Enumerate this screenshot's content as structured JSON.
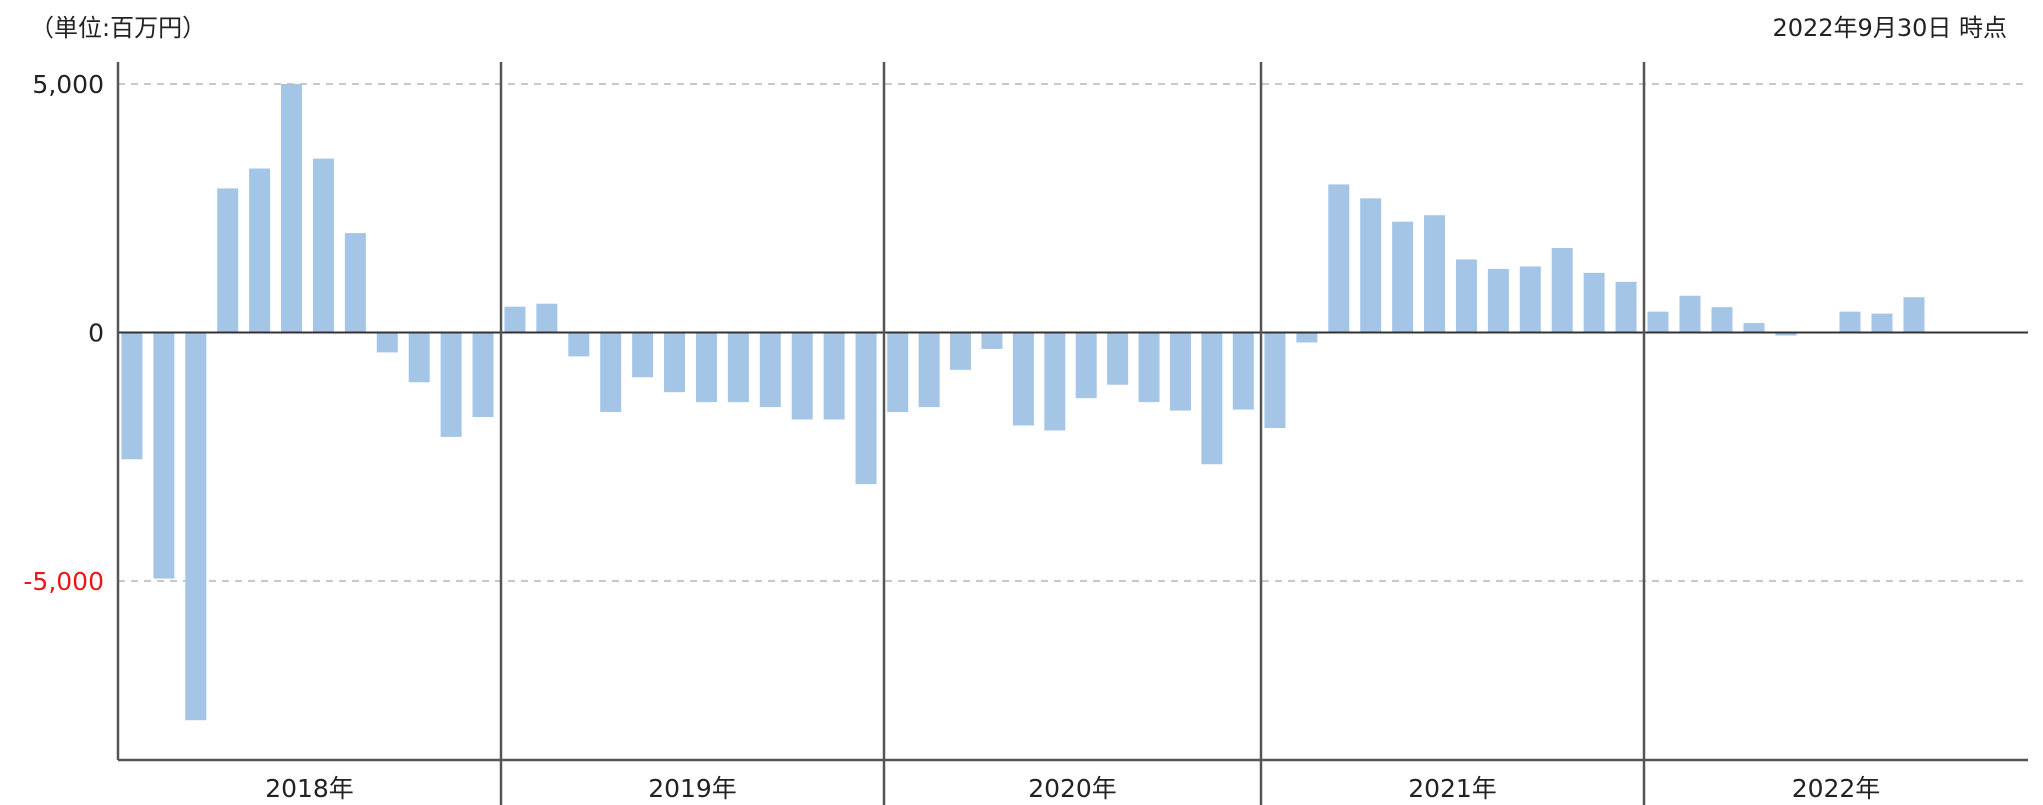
{
  "header": {
    "unit_label": "（単位:百万円）",
    "as_of_label": "2022年9月30日 時点"
  },
  "colors": {
    "bar": "#a4c5e6",
    "axis": "#555555",
    "grid": "#c8c8c8",
    "negative_tick": "#e8171a",
    "tick": "#222222"
  },
  "chart_data": {
    "type": "bar",
    "title": "",
    "xlabel": "",
    "ylabel": "",
    "ylim": [
      -8600,
      5000
    ],
    "yticks": [
      {
        "value": 5000,
        "label": "5,000",
        "negative": false
      },
      {
        "value": 0,
        "label": "0",
        "negative": false
      },
      {
        "value": -5000,
        "label": "-5,000",
        "negative": true
      }
    ],
    "grid": true,
    "groups": [
      {
        "label": "2018年",
        "values": [
          -2550,
          -4950,
          -7800,
          2900,
          3300,
          5000,
          3500,
          2000,
          -400,
          -1000,
          -2100,
          -1700
        ]
      },
      {
        "label": "2019年",
        "values": [
          520,
          580,
          -480,
          -1600,
          -900,
          -1200,
          -1400,
          -1400,
          -1500,
          -1750,
          -1750,
          -3050
        ]
      },
      {
        "label": "2020年",
        "values": [
          -1600,
          -1500,
          -750,
          -330,
          -1870,
          -1970,
          -1320,
          -1050,
          -1400,
          -1570,
          -2650,
          -1550
        ]
      },
      {
        "label": "2021年",
        "values": [
          -1920,
          -200,
          2980,
          2700,
          2230,
          2360,
          1470,
          1280,
          1330,
          1700,
          1200,
          1020
        ]
      },
      {
        "label": "2022年",
        "values": [
          420,
          740,
          510,
          190,
          -60,
          null,
          420,
          380,
          710,
          null,
          null,
          null
        ]
      }
    ]
  }
}
